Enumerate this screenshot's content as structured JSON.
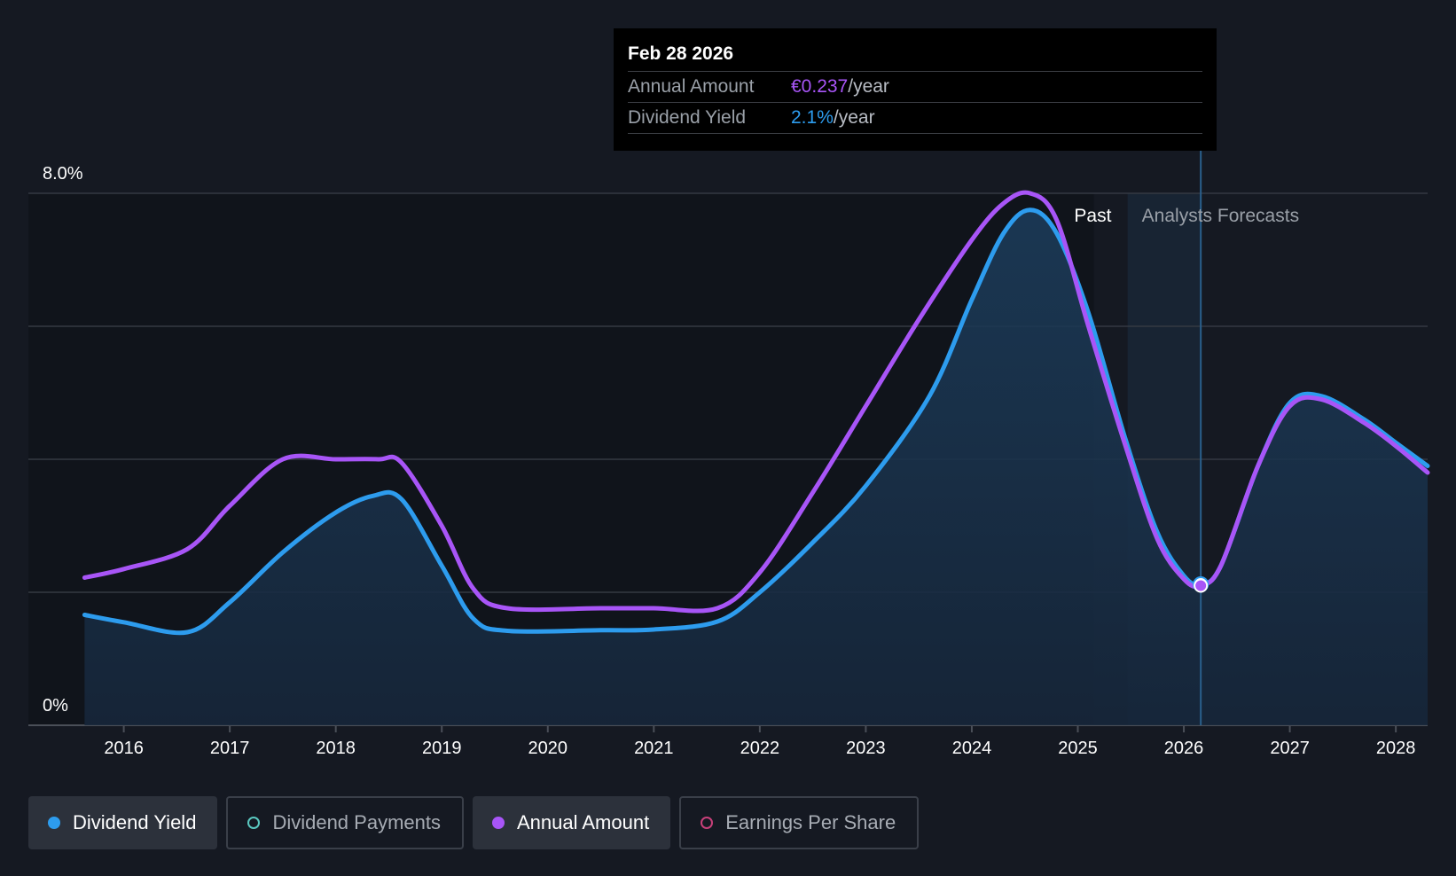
{
  "chart_data": {
    "type": "line",
    "title": "",
    "xlabel": "",
    "ylabel": "",
    "y_axis_labels": {
      "top": "8.0%",
      "bottom": "0%"
    },
    "ylim": [
      0,
      8
    ],
    "xlim": [
      2015.1,
      2028.3
    ],
    "x_ticks": [
      "2016",
      "2017",
      "2018",
      "2019",
      "2020",
      "2021",
      "2022",
      "2023",
      "2024",
      "2025",
      "2026",
      "2027",
      "2028"
    ],
    "past_label": "Past",
    "forecast_label": "Analysts Forecasts",
    "past_end_x": 2025.15,
    "forecast_start_x": 2025.47,
    "selected_x": 2026.16,
    "series": [
      {
        "name": "Dividend Yield",
        "color": "#2d9cee",
        "points": [
          [
            2015.63,
            1.66
          ],
          [
            2016.0,
            1.55
          ],
          [
            2016.6,
            1.4
          ],
          [
            2017.0,
            1.85
          ],
          [
            2017.5,
            2.6
          ],
          [
            2018.0,
            3.2
          ],
          [
            2018.35,
            3.45
          ],
          [
            2018.62,
            3.4
          ],
          [
            2019.0,
            2.4
          ],
          [
            2019.3,
            1.6
          ],
          [
            2019.62,
            1.42
          ],
          [
            2020.5,
            1.43
          ],
          [
            2021.0,
            1.44
          ],
          [
            2021.6,
            1.56
          ],
          [
            2022.0,
            2.0
          ],
          [
            2022.5,
            2.75
          ],
          [
            2023.0,
            3.6
          ],
          [
            2023.6,
            4.95
          ],
          [
            2024.0,
            6.4
          ],
          [
            2024.3,
            7.4
          ],
          [
            2024.55,
            7.75
          ],
          [
            2024.8,
            7.4
          ],
          [
            2025.1,
            6.2
          ],
          [
            2025.45,
            4.3
          ],
          [
            2025.75,
            2.9
          ],
          [
            2026.0,
            2.25
          ],
          [
            2026.16,
            2.12
          ],
          [
            2026.35,
            2.4
          ],
          [
            2026.7,
            3.9
          ],
          [
            2027.0,
            4.85
          ],
          [
            2027.3,
            4.95
          ],
          [
            2027.7,
            4.6
          ],
          [
            2028.0,
            4.25
          ],
          [
            2028.3,
            3.9
          ]
        ]
      },
      {
        "name": "Annual Amount",
        "color": "#a855f7",
        "points": [
          [
            2015.63,
            2.22
          ],
          [
            2016.0,
            2.35
          ],
          [
            2016.6,
            2.65
          ],
          [
            2017.0,
            3.3
          ],
          [
            2017.5,
            4.0
          ],
          [
            2018.0,
            4.0
          ],
          [
            2018.4,
            4.0
          ],
          [
            2018.62,
            3.95
          ],
          [
            2019.0,
            3.0
          ],
          [
            2019.3,
            2.05
          ],
          [
            2019.62,
            1.76
          ],
          [
            2020.5,
            1.76
          ],
          [
            2021.0,
            1.76
          ],
          [
            2021.6,
            1.76
          ],
          [
            2022.0,
            2.3
          ],
          [
            2022.5,
            3.5
          ],
          [
            2023.0,
            4.8
          ],
          [
            2023.5,
            6.1
          ],
          [
            2024.0,
            7.3
          ],
          [
            2024.3,
            7.85
          ],
          [
            2024.55,
            8.0
          ],
          [
            2024.8,
            7.6
          ],
          [
            2025.1,
            6.0
          ],
          [
            2025.45,
            4.2
          ],
          [
            2025.75,
            2.8
          ],
          [
            2026.0,
            2.2
          ],
          [
            2026.16,
            2.1
          ],
          [
            2026.35,
            2.4
          ],
          [
            2026.7,
            3.9
          ],
          [
            2027.0,
            4.8
          ],
          [
            2027.3,
            4.9
          ],
          [
            2027.7,
            4.55
          ],
          [
            2028.0,
            4.2
          ],
          [
            2028.3,
            3.8
          ]
        ]
      }
    ],
    "area_series": "Dividend Yield"
  },
  "tooltip": {
    "date": "Feb 28 2026",
    "rows": [
      {
        "label": "Annual Amount",
        "value": "€0.237",
        "unit": "/year"
      },
      {
        "label": "Dividend Yield",
        "value": "2.1%",
        "unit": "/year"
      }
    ]
  },
  "legend": [
    {
      "label": "Dividend Yield",
      "color": "#2d9cee",
      "active": true
    },
    {
      "label": "Dividend Payments",
      "color": "#5ac8c0",
      "active": false
    },
    {
      "label": "Annual Amount",
      "color": "#a855f7",
      "active": true
    },
    {
      "label": "Earnings Per Share",
      "color": "#c8407a",
      "active": false
    }
  ]
}
